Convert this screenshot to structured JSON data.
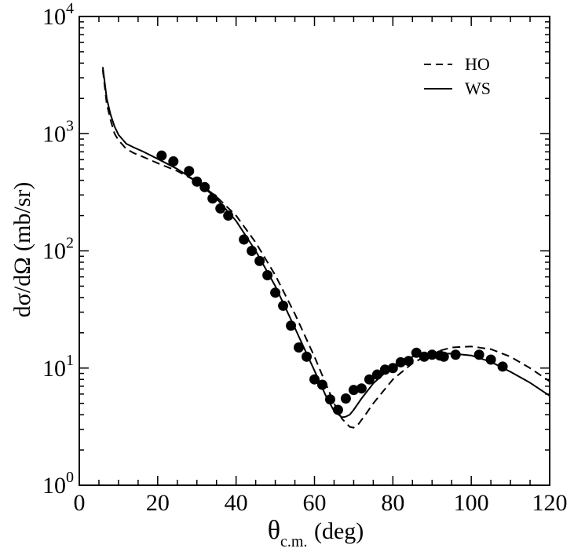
{
  "chart_data": {
    "type": "line",
    "xlabel": {
      "symbol": "θ",
      "subscript": "c.m.",
      "units": "(deg)"
    },
    "ylabel": "dσ/dΩ (mb/sr)",
    "xlim": [
      0,
      120
    ],
    "ylim_log10": [
      0,
      4
    ],
    "x_ticks": [
      "0",
      "20",
      "40",
      "60",
      "80",
      "100",
      "120"
    ],
    "y_ticks": [
      {
        "base": "10",
        "exp": "0"
      },
      {
        "base": "10",
        "exp": "1"
      },
      {
        "base": "10",
        "exp": "2"
      },
      {
        "base": "10",
        "exp": "3"
      },
      {
        "base": "10",
        "exp": "4"
      }
    ],
    "series": [
      {
        "name": "HO",
        "style": "dashed",
        "x": [
          6,
          7,
          8,
          9,
          10,
          12,
          14,
          16,
          20,
          25,
          30,
          35,
          40,
          45,
          50,
          55,
          60,
          63,
          65,
          67,
          69,
          70,
          71,
          73,
          75,
          80,
          85,
          90,
          95,
          100,
          105,
          110,
          115,
          120
        ],
        "y": [
          3500,
          1800,
          1300,
          1000,
          880,
          740,
          680,
          640,
          560,
          480,
          390,
          290,
          200,
          118,
          62,
          29,
          12.5,
          7.2,
          5.0,
          3.7,
          3.15,
          3.1,
          3.25,
          4.0,
          5.0,
          8.0,
          11.0,
          13.5,
          15.0,
          15.3,
          14.5,
          12.5,
          10.0,
          7.7
        ]
      },
      {
        "name": "WS",
        "style": "solid",
        "x": [
          6,
          7,
          8,
          9,
          10,
          12,
          14,
          16,
          20,
          25,
          30,
          35,
          40,
          45,
          50,
          55,
          60,
          63,
          65,
          67,
          68,
          69,
          70,
          72,
          75,
          80,
          85,
          90,
          95,
          100,
          105,
          110,
          115,
          120
        ],
        "y": [
          3700,
          2000,
          1450,
          1150,
          980,
          820,
          760,
          710,
          610,
          500,
          390,
          280,
          180,
          100,
          50,
          22,
          9.5,
          5.7,
          4.3,
          3.8,
          3.85,
          4.0,
          4.4,
          5.5,
          7.4,
          10.5,
          12.5,
          13.2,
          13.3,
          12.8,
          11.3,
          9.3,
          7.5,
          5.8
        ]
      },
      {
        "name": "data",
        "style": "markers",
        "x": [
          21,
          24,
          28,
          30,
          32,
          34,
          36,
          38,
          42,
          44,
          46,
          48,
          50,
          52,
          54,
          56,
          58,
          60,
          62,
          64,
          66,
          68,
          70,
          72,
          74,
          76,
          78,
          80,
          82,
          84,
          86,
          88,
          90,
          92,
          93,
          96,
          102,
          105,
          108
        ],
        "y": [
          650,
          580,
          480,
          390,
          350,
          280,
          230,
          200,
          125,
          100,
          82,
          62,
          44,
          34,
          23,
          15,
          12.5,
          8,
          7.2,
          5.4,
          4.4,
          5.5,
          6.5,
          6.7,
          8,
          8.8,
          9.7,
          10,
          11.2,
          11.5,
          13.5,
          12.5,
          13,
          12.8,
          12.5,
          13,
          13,
          11.8,
          10.3
        ]
      }
    ],
    "legend": {
      "position": "top-right",
      "entries": [
        {
          "label": "HO",
          "style": "dashed"
        },
        {
          "label": "WS",
          "style": "solid"
        }
      ]
    }
  }
}
